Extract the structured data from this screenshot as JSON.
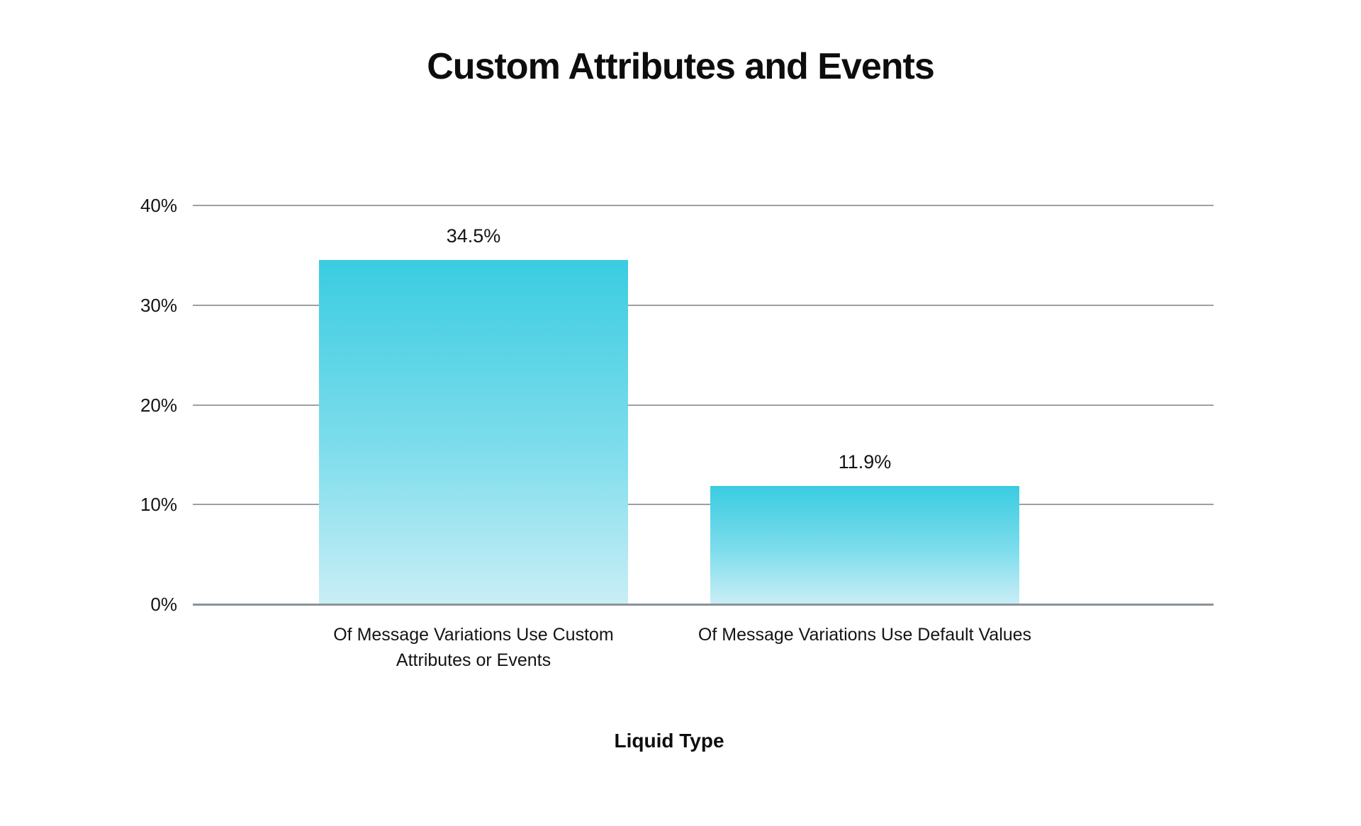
{
  "page": {
    "background": "#ffffff"
  },
  "chart_data": {
    "type": "bar",
    "title": "Custom Attributes and Events",
    "xlabel": "Liquid Type",
    "ylabel": "",
    "categories": [
      "Of Message Variations Use Custom Attributes or Events",
      "Of Message Variations Use Default Values"
    ],
    "values": [
      34.5,
      11.9
    ],
    "value_labels": [
      "34.5%",
      "11.9%"
    ],
    "y_ticks": [
      0,
      10,
      20,
      30,
      40
    ],
    "y_tick_labels": [
      "0%",
      "10%",
      "20%",
      "30%",
      "40%"
    ],
    "ylim": [
      0,
      40
    ],
    "grid": "horizontal-only",
    "legend": "none",
    "colors": {
      "bar_gradient_top": "#3ACCE1",
      "bar_gradient_bottom": "#C9EEF6",
      "gridline": "#9aa1a6",
      "zero_line": "#8b9298",
      "text": "#141414"
    }
  }
}
